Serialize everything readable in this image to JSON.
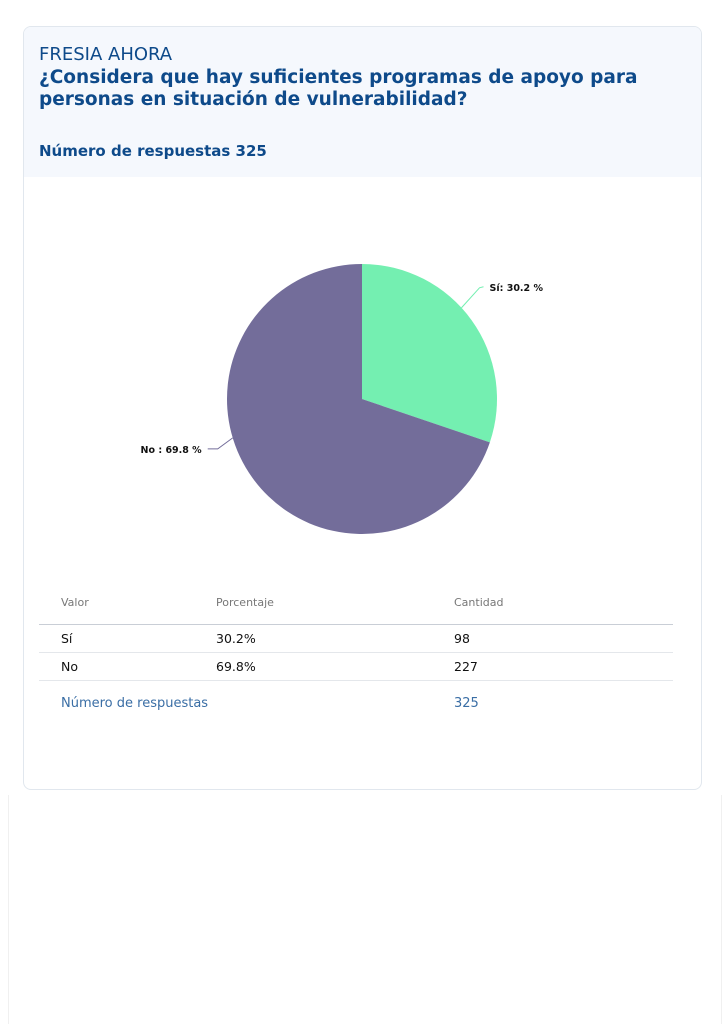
{
  "header": {
    "brand": "FRESIA AHORA",
    "question": "¿Considera que hay suficientes programas de apoyo para personas en situación de vulnerabilidad?",
    "responses_label": "Número de respuestas 325"
  },
  "chart_data": {
    "type": "pie",
    "categories": [
      "Sí",
      "No"
    ],
    "values": [
      30.2,
      69.8
    ],
    "labels": [
      "Sí: 30.2 %",
      "No : 69.8 %"
    ],
    "colors": [
      "#74efb1",
      "#736d9a"
    ]
  },
  "table": {
    "headers": [
      "Valor",
      "Porcentaje",
      "Cantidad"
    ],
    "rows": [
      [
        "Sí",
        "30.2%",
        "98"
      ],
      [
        "No",
        "69.8%",
        "227"
      ]
    ],
    "total_label": "Número de respuestas",
    "total_value": "325"
  }
}
